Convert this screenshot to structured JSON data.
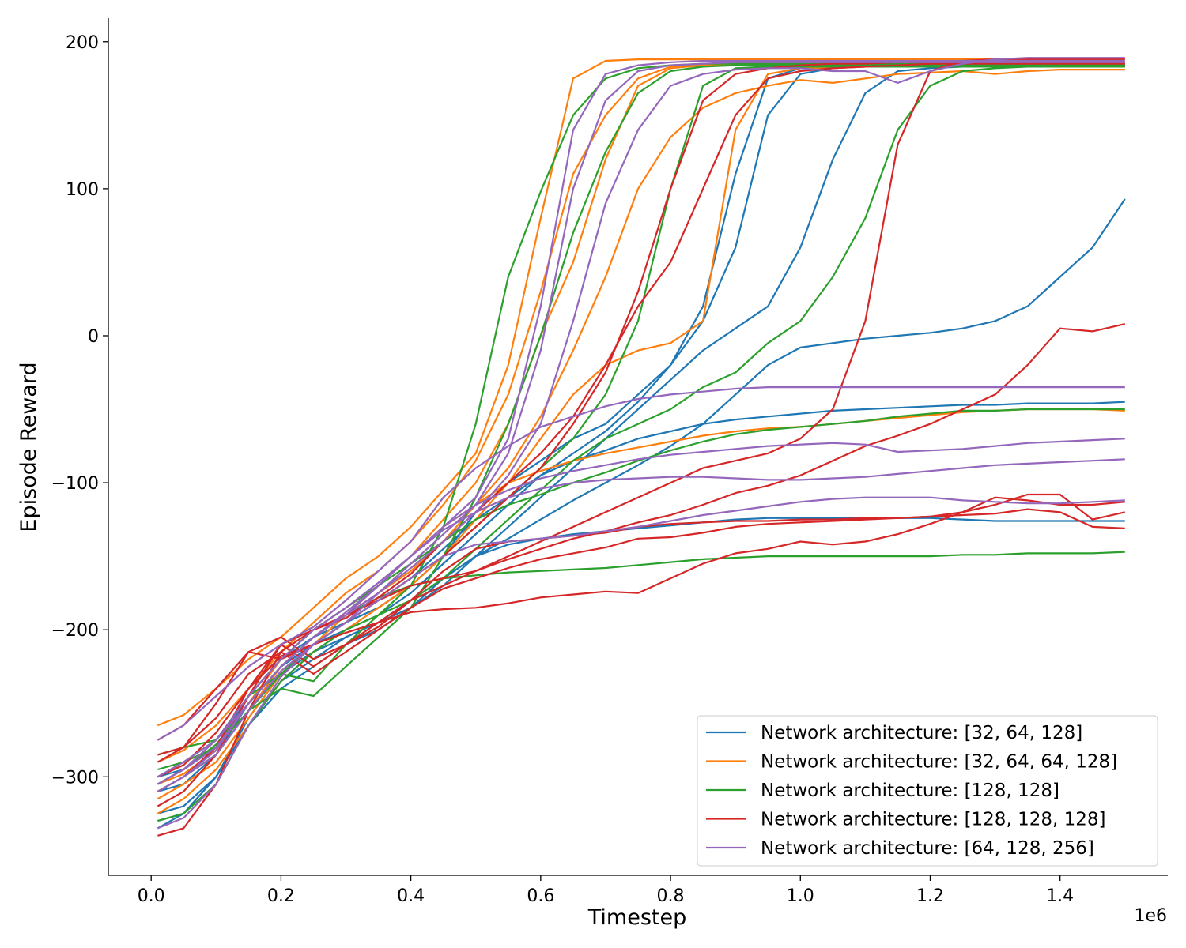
{
  "chart_data": {
    "type": "line",
    "title": "",
    "xlabel": "Timestep",
    "ylabel": "Episode Reward",
    "x_offset_label": "1e6",
    "xlim": [
      -0.066,
      1.566
    ],
    "ylim": [
      -367,
      216
    ],
    "x_ticks": [
      0.0,
      0.2,
      0.4,
      0.6,
      0.8,
      1.0,
      1.2,
      1.4
    ],
    "x_tick_labels": [
      "0.0",
      "0.2",
      "0.4",
      "0.6",
      "0.8",
      "1.0",
      "1.2",
      "1.4"
    ],
    "y_ticks": [
      -300,
      -200,
      -100,
      0,
      100,
      200
    ],
    "y_tick_labels": [
      "−300",
      "−200",
      "−100",
      "0",
      "100",
      "200"
    ],
    "grid": false,
    "legend_position": "lower-right",
    "x": [
      0.01,
      0.05,
      0.1,
      0.15,
      0.2,
      0.25,
      0.3,
      0.35,
      0.4,
      0.45,
      0.5,
      0.55,
      0.6,
      0.65,
      0.7,
      0.75,
      0.8,
      0.85,
      0.9,
      0.95,
      1.0,
      1.05,
      1.1,
      1.15,
      1.2,
      1.25,
      1.3,
      1.35,
      1.4,
      1.45,
      1.5
    ],
    "series": [
      {
        "name": "Network architecture: [32, 64, 128]",
        "color": "#1f77b4",
        "runs": [
          [
            -330,
            -325,
            -300,
            -260,
            -230,
            -215,
            -205,
            -195,
            -185,
            -170,
            -150,
            -130,
            -110,
            -90,
            -70,
            -50,
            -30,
            -10,
            5,
            20,
            60,
            120,
            165,
            180,
            182,
            183,
            183,
            183,
            184,
            184,
            184
          ],
          [
            -310,
            -305,
            -285,
            -250,
            -225,
            -210,
            -200,
            -190,
            -175,
            -155,
            -135,
            -115,
            -95,
            -80,
            -65,
            -45,
            -20,
            10,
            60,
            150,
            178,
            182,
            183,
            183,
            184,
            184,
            184,
            184,
            184,
            184,
            184
          ],
          [
            -300,
            -295,
            -280,
            -245,
            -220,
            -205,
            -195,
            -185,
            -170,
            -150,
            -120,
            -100,
            -85,
            -70,
            -60,
            -40,
            -20,
            20,
            110,
            175,
            182,
            183,
            184,
            184,
            184,
            184,
            184,
            184,
            184,
            184,
            184
          ],
          [
            -335,
            -325,
            -300,
            -265,
            -235,
            -220,
            -205,
            -195,
            -180,
            -165,
            -150,
            -142,
            -138,
            -135,
            -133,
            -131,
            -129,
            -127,
            -125,
            -124,
            -124,
            -124,
            -124,
            -124,
            -124,
            -125,
            -126,
            -126,
            -126,
            -126,
            -126
          ],
          [
            -305,
            -295,
            -280,
            -250,
            -225,
            -210,
            -195,
            -180,
            -165,
            -145,
            -125,
            -110,
            -95,
            -85,
            -78,
            -70,
            -65,
            -60,
            -57,
            -55,
            -53,
            -51,
            -50,
            -49,
            -48,
            -47,
            -47,
            -46,
            -46,
            -46,
            -45
          ],
          [
            -325,
            -320,
            -300,
            -265,
            -240,
            -225,
            -210,
            -200,
            -185,
            -165,
            -150,
            -138,
            -125,
            -112,
            -100,
            -88,
            -75,
            -60,
            -40,
            -20,
            -8,
            -5,
            -2,
            0,
            2,
            5,
            10,
            20,
            40,
            60,
            93
          ]
        ]
      },
      {
        "name": "Network architecture: [32, 64, 64, 128]",
        "color": "#ff7f0e",
        "runs": [
          [
            -265,
            -258,
            -240,
            -220,
            -205,
            -185,
            -165,
            -150,
            -130,
            -105,
            -80,
            -20,
            80,
            175,
            187,
            188,
            188,
            188,
            188,
            188,
            188,
            188,
            188,
            188,
            188,
            188,
            188,
            188,
            188,
            188,
            188
          ],
          [
            -290,
            -282,
            -265,
            -240,
            -215,
            -195,
            -175,
            -160,
            -140,
            -115,
            -85,
            -40,
            30,
            110,
            150,
            175,
            183,
            185,
            185,
            186,
            186,
            186,
            186,
            186,
            186,
            186,
            186,
            186,
            186,
            186,
            186
          ],
          [
            -305,
            -298,
            -282,
            -250,
            -220,
            -200,
            -185,
            -170,
            -150,
            -125,
            -100,
            -60,
            0,
            50,
            120,
            170,
            182,
            184,
            185,
            185,
            185,
            185,
            185,
            185,
            185,
            185,
            185,
            185,
            185,
            185,
            185
          ],
          [
            -310,
            -300,
            -285,
            -255,
            -225,
            -205,
            -190,
            -175,
            -160,
            -140,
            -115,
            -90,
            -55,
            -10,
            40,
            100,
            135,
            155,
            165,
            170,
            174,
            172,
            175,
            178,
            179,
            180,
            178,
            180,
            181,
            181,
            181
          ],
          [
            -325,
            -315,
            -295,
            -265,
            -235,
            -215,
            -200,
            -185,
            -170,
            -150,
            -125,
            -100,
            -70,
            -40,
            -20,
            -10,
            -5,
            10,
            140,
            178,
            182,
            182,
            183,
            183,
            183,
            183,
            183,
            183,
            183,
            183,
            183
          ],
          [
            -315,
            -305,
            -290,
            -260,
            -230,
            -210,
            -190,
            -170,
            -150,
            -130,
            -115,
            -100,
            -92,
            -85,
            -80,
            -76,
            -72,
            -68,
            -65,
            -63,
            -62,
            -60,
            -58,
            -56,
            -54,
            -52,
            -51,
            -50,
            -50,
            -50,
            -51
          ]
        ]
      },
      {
        "name": "Network architecture: [128, 128]",
        "color": "#2ca02c",
        "runs": [
          [
            -285,
            -280,
            -275,
            -245,
            -230,
            -235,
            -210,
            -190,
            -170,
            -130,
            -60,
            40,
            98,
            150,
            175,
            182,
            184,
            185,
            185,
            185,
            185,
            185,
            185,
            185,
            185,
            185,
            185,
            185,
            185,
            185,
            185
          ],
          [
            -295,
            -290,
            -280,
            -255,
            -240,
            -245,
            -225,
            -205,
            -185,
            -150,
            -110,
            -60,
            0,
            70,
            125,
            165,
            180,
            183,
            184,
            184,
            184,
            184,
            184,
            184,
            184,
            184,
            184,
            184,
            184,
            184,
            184
          ],
          [
            -310,
            -300,
            -285,
            -255,
            -230,
            -210,
            -195,
            -180,
            -165,
            -150,
            -130,
            -110,
            -90,
            -70,
            -40,
            10,
            100,
            170,
            182,
            183,
            183,
            183,
            183,
            183,
            183,
            183,
            183,
            183,
            183,
            183,
            183
          ],
          [
            -330,
            -325,
            -305,
            -265,
            -235,
            -215,
            -200,
            -190,
            -180,
            -165,
            -145,
            -125,
            -105,
            -85,
            -70,
            -60,
            -50,
            -35,
            -25,
            -5,
            10,
            40,
            80,
            140,
            170,
            180,
            182,
            183,
            183,
            183,
            183
          ],
          [
            -305,
            -295,
            -278,
            -250,
            -225,
            -205,
            -190,
            -178,
            -170,
            -165,
            -163,
            -161,
            -160,
            -159,
            -158,
            -156,
            -154,
            -152,
            -151,
            -150,
            -150,
            -150,
            -150,
            -150,
            -150,
            -149,
            -149,
            -148,
            -148,
            -148,
            -147
          ],
          [
            -300,
            -290,
            -275,
            -245,
            -220,
            -200,
            -185,
            -170,
            -155,
            -140,
            -125,
            -115,
            -108,
            -100,
            -93,
            -85,
            -78,
            -72,
            -67,
            -64,
            -62,
            -60,
            -58,
            -55,
            -53,
            -51,
            -51,
            -50,
            -50,
            -50,
            -50
          ]
        ]
      },
      {
        "name": "Network architecture: [128, 128, 128]",
        "color": "#d62728",
        "runs": [
          [
            -320,
            -310,
            -285,
            -245,
            -210,
            -200,
            -190,
            -180,
            -165,
            -150,
            -130,
            -110,
            -90,
            -60,
            -25,
            30,
            100,
            160,
            178,
            182,
            184,
            185,
            185,
            186,
            186,
            186,
            186,
            186,
            186,
            186,
            186
          ],
          [
            -340,
            -335,
            -305,
            -255,
            -215,
            -200,
            -192,
            -178,
            -162,
            -140,
            -120,
            -100,
            -80,
            -55,
            -20,
            20,
            50,
            100,
            150,
            175,
            180,
            182,
            183,
            184,
            185,
            185,
            185,
            185,
            185,
            185,
            185
          ],
          [
            -290,
            -280,
            -250,
            -215,
            -220,
            -210,
            -195,
            -180,
            -170,
            -165,
            -160,
            -150,
            -140,
            -130,
            -120,
            -110,
            -100,
            -90,
            -85,
            -80,
            -70,
            -50,
            10,
            130,
            180,
            187,
            188,
            188,
            188,
            188,
            188
          ],
          [
            -275,
            -265,
            -240,
            -215,
            -205,
            -220,
            -210,
            -195,
            -180,
            -170,
            -160,
            -152,
            -145,
            -138,
            -133,
            -127,
            -122,
            -115,
            -107,
            -102,
            -95,
            -85,
            -75,
            -68,
            -60,
            -50,
            -40,
            -20,
            5,
            3,
            8
          ],
          [
            -310,
            -300,
            -280,
            -240,
            -210,
            -225,
            -210,
            -198,
            -180,
            -160,
            -145,
            -140,
            -138,
            -136,
            -134,
            -130,
            -128,
            -127,
            -126,
            -126,
            -125,
            -125,
            -124,
            -124,
            -123,
            -120,
            -115,
            -108,
            -108,
            -125,
            -120
          ],
          [
            -300,
            -292,
            -270,
            -240,
            -218,
            -210,
            -202,
            -195,
            -188,
            -186,
            -185,
            -182,
            -178,
            -176,
            -174,
            -175,
            -165,
            -155,
            -148,
            -145,
            -140,
            -142,
            -140,
            -135,
            -128,
            -120,
            -110,
            -112,
            -115,
            -115,
            -113
          ],
          [
            -285,
            -280,
            -260,
            -230,
            -215,
            -230,
            -215,
            -200,
            -185,
            -172,
            -165,
            -158,
            -152,
            -148,
            -144,
            -138,
            -137,
            -134,
            -130,
            -128,
            -127,
            -126,
            -125,
            -124,
            -123,
            -122,
            -121,
            -118,
            -120,
            -130,
            -131
          ]
        ]
      },
      {
        "name": "Network architecture: [64, 128, 256]",
        "color": "#9467bd",
        "runs": [
          [
            -300,
            -290,
            -275,
            -250,
            -225,
            -205,
            -190,
            -170,
            -150,
            -130,
            -110,
            -70,
            20,
            140,
            178,
            184,
            186,
            187,
            187,
            187,
            187,
            187,
            187,
            187,
            187,
            187,
            187,
            187,
            187,
            187,
            187
          ],
          [
            -305,
            -295,
            -280,
            -250,
            -225,
            -205,
            -190,
            -175,
            -155,
            -135,
            -115,
            -80,
            -10,
            100,
            160,
            180,
            184,
            185,
            186,
            186,
            186,
            186,
            186,
            186,
            186,
            186,
            186,
            186,
            186,
            186,
            186
          ],
          [
            -310,
            -300,
            -285,
            -255,
            -228,
            -210,
            -195,
            -175,
            -158,
            -140,
            -120,
            -95,
            -60,
            10,
            90,
            140,
            170,
            178,
            181,
            182,
            182,
            180,
            180,
            172,
            180,
            185,
            188,
            189,
            189,
            189,
            189
          ],
          [
            -275,
            -265,
            -245,
            -225,
            -210,
            -198,
            -180,
            -160,
            -140,
            -110,
            -90,
            -75,
            -62,
            -55,
            -48,
            -43,
            -40,
            -38,
            -36,
            -35,
            -35,
            -35,
            -35,
            -35,
            -35,
            -35,
            -35,
            -35,
            -35,
            -35,
            -35
          ],
          [
            -305,
            -295,
            -275,
            -245,
            -220,
            -200,
            -185,
            -168,
            -150,
            -130,
            -115,
            -105,
            -97,
            -92,
            -88,
            -84,
            -81,
            -79,
            -77,
            -75,
            -74,
            -73,
            -74,
            -79,
            -78,
            -77,
            -75,
            -73,
            -72,
            -71,
            -70
          ],
          [
            -310,
            -300,
            -282,
            -250,
            -225,
            -205,
            -188,
            -170,
            -150,
            -132,
            -120,
            -110,
            -104,
            -100,
            -98,
            -97,
            -96,
            -96,
            -97,
            -98,
            -98,
            -97,
            -96,
            -94,
            -92,
            -90,
            -88,
            -87,
            -86,
            -85,
            -84
          ],
          [
            -335,
            -328,
            -305,
            -265,
            -232,
            -210,
            -195,
            -180,
            -165,
            -150,
            -142,
            -140,
            -138,
            -136,
            -133,
            -130,
            -126,
            -122,
            -119,
            -116,
            -113,
            -111,
            -110,
            -110,
            -110,
            -112,
            -113,
            -114,
            -114,
            -113,
            -112
          ]
        ]
      }
    ]
  }
}
